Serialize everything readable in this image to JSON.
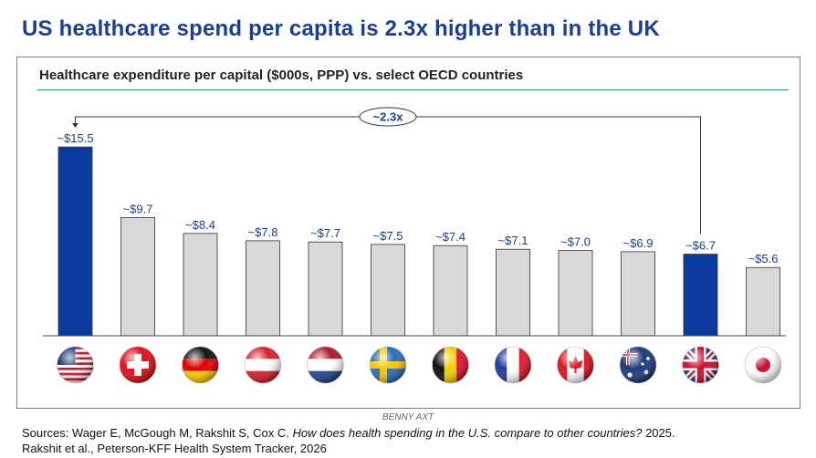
{
  "headline": "US healthcare spend per capita is 2.3x higher than in the UK",
  "credit": "BENNY AXT",
  "sources": {
    "line1_prefix": "Sources: Wager E, McGough M, Rakshit S, Cox C. ",
    "line1_italic": "How does health spending in the U.S. compare to other countries?",
    "line1_suffix": " 2025.",
    "line2": "Rakshit et al., Peterson-KFF Health System Tracker, 2026"
  },
  "colors": {
    "highlight": "#0b3a9e",
    "default_bar": "#d9d9d9",
    "label": "#1a3d9b",
    "rule": "#2a9d8f"
  },
  "chart_data": {
    "type": "bar",
    "title": "Healthcare expenditure per capital ($000s, PPP) vs. select OECD countries",
    "ylim": [
      0,
      16
    ],
    "categories": [
      "United States",
      "Switzerland",
      "Germany",
      "Austria",
      "Netherlands",
      "Sweden",
      "Belgium",
      "France",
      "Canada",
      "Australia",
      "United Kingdom",
      "Japan"
    ],
    "flag_icons": [
      "us-flag-icon",
      "swiss-flag-icon",
      "german-flag-icon",
      "austrian-flag-icon",
      "dutch-flag-icon",
      "swedish-flag-icon",
      "belgian-flag-icon",
      "french-flag-icon",
      "canadian-flag-icon",
      "australian-flag-icon",
      "uk-flag-icon",
      "japanese-flag-icon"
    ],
    "values": [
      15.5,
      9.7,
      8.4,
      7.8,
      7.7,
      7.5,
      7.4,
      7.1,
      7.0,
      6.9,
      6.7,
      5.6
    ],
    "data_labels": [
      "~$15.5",
      "~$9.7",
      "~$8.4",
      "~$7.8",
      "~$7.7",
      "~$7.5",
      "~$7.4",
      "~$7.1",
      "~$7.0",
      "~$6.9",
      "~$6.7",
      "~$5.6"
    ],
    "highlighted": [
      "United States",
      "United Kingdom"
    ],
    "annotation": {
      "text": "~2.3x",
      "from": "United States",
      "to": "United Kingdom"
    }
  }
}
